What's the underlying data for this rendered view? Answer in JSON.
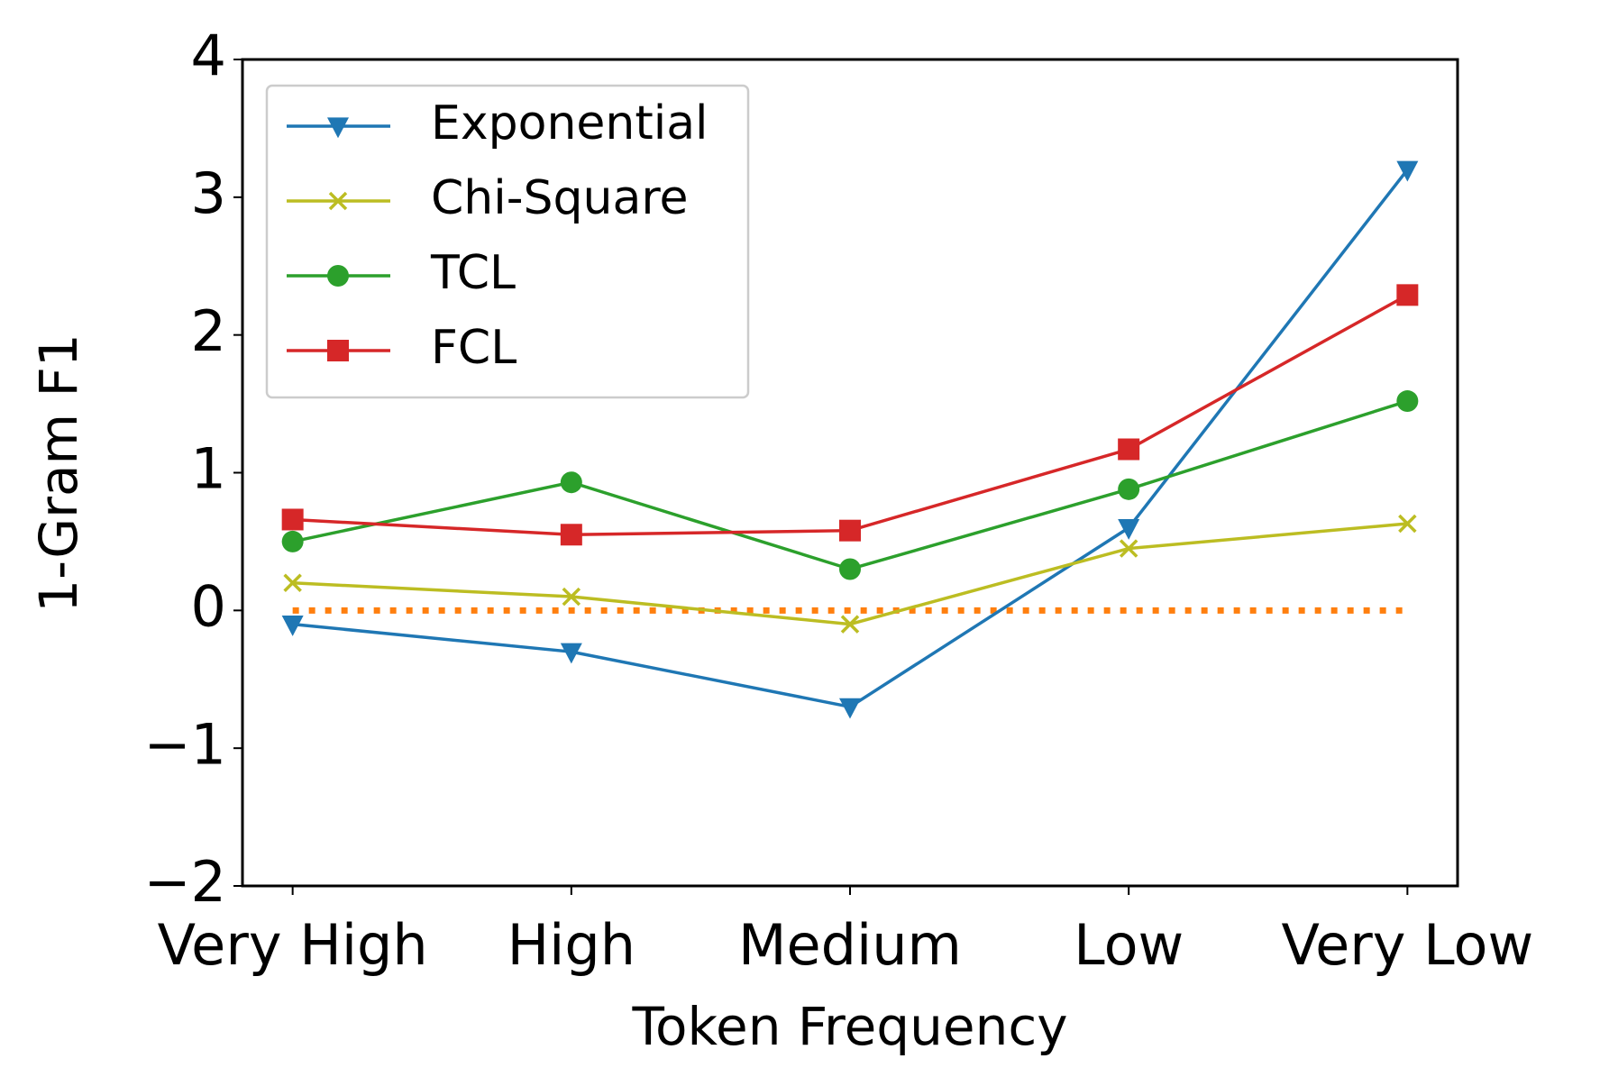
{
  "chart_data": {
    "type": "line",
    "x_label": "Token Frequency",
    "y_label": "1-Gram F1",
    "categories": [
      "Very High",
      "High",
      "Medium",
      "Low",
      "Very Low"
    ],
    "series": [
      {
        "name": "Exponential",
        "color": "#1f77b4",
        "marker": "triangle-down",
        "values": [
          -0.1,
          -0.3,
          -0.7,
          0.6,
          3.2
        ]
      },
      {
        "name": "Chi-Square",
        "color": "#bcbd22",
        "marker": "x",
        "values": [
          0.2,
          0.1,
          -0.1,
          0.45,
          0.63
        ]
      },
      {
        "name": "TCL",
        "color": "#2ca02c",
        "marker": "circle",
        "values": [
          0.5,
          0.93,
          0.3,
          0.88,
          1.52
        ]
      },
      {
        "name": "FCL",
        "color": "#d62728",
        "marker": "square",
        "values": [
          0.66,
          0.55,
          0.58,
          1.17,
          2.29
        ]
      }
    ],
    "reference_line": {
      "value": 0,
      "color": "#ff7f0e",
      "style": "dotted"
    },
    "ylim": [
      -2,
      4
    ],
    "yticks": [
      {
        "value": -2,
        "label": "−2"
      },
      {
        "value": -1,
        "label": "−1"
      },
      0,
      1,
      2,
      3,
      4
    ],
    "grid": false,
    "legend": "upper-left"
  }
}
